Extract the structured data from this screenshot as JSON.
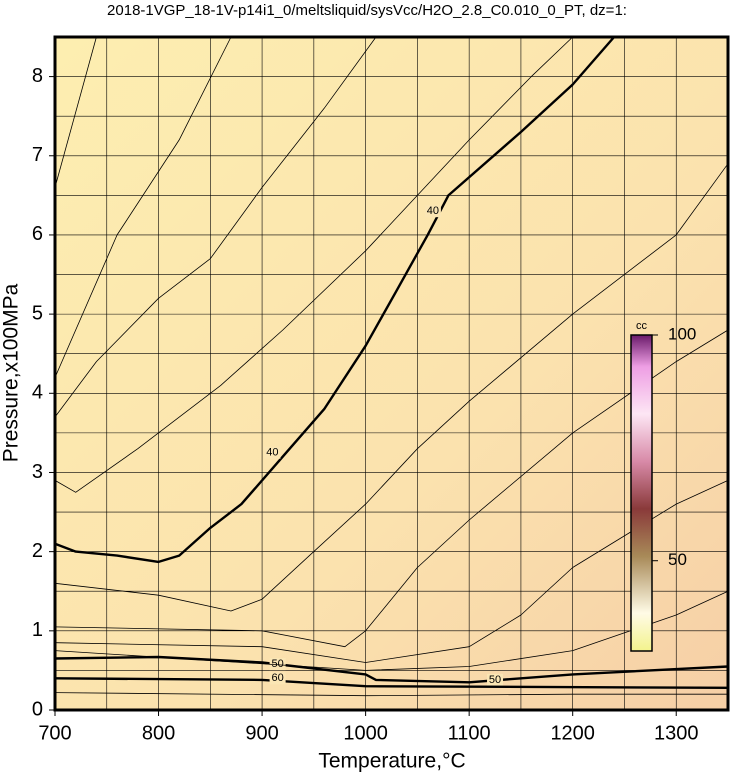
{
  "chart_data": {
    "type": "contour",
    "title": "2018-1VGP_18-1V-p14i1_0/meltsliquid/sysVcc/H2O_2.8_C0.010_0_PT, dz=1:",
    "x_label": "Temperature,°C",
    "y_label": "Pressure,x100MPa",
    "xlim": [
      700,
      1350
    ],
    "ylim": [
      0,
      8.5
    ],
    "xticks": [
      700,
      800,
      900,
      1000,
      1100,
      1200,
      1300
    ],
    "yticks": [
      0,
      1,
      2,
      3,
      4,
      5,
      6,
      7,
      8
    ],
    "xminor_ticks": [
      750,
      850,
      950,
      1050,
      1150,
      1250,
      1350
    ],
    "yminor_ticks": [
      0.5,
      1.5,
      2.5,
      3.5,
      4.5,
      5.5,
      6.5,
      7.5
    ],
    "grid": true,
    "colorbar": {
      "label": "cc",
      "lim": [
        30,
        100
      ],
      "ticks": [
        50,
        100
      ]
    },
    "contours": [
      {
        "level": 40,
        "bold": true,
        "label_x": [
          910,
          1065
        ],
        "label_y": [
          3.25,
          6.3
        ],
        "x": [
          700,
          720,
          760,
          800,
          820,
          850,
          880,
          920,
          960,
          1000,
          1030,
          1060,
          1080,
          1150,
          1200,
          1240
        ],
        "y": [
          2.1,
          2.0,
          1.95,
          1.87,
          1.95,
          2.3,
          2.6,
          3.2,
          3.8,
          4.6,
          5.3,
          6.0,
          6.5,
          7.3,
          7.9,
          8.5
        ]
      },
      {
        "level": 50,
        "bold": true,
        "label_x": [
          915,
          1125
        ],
        "label_y": [
          0.58,
          0.38
        ],
        "x": [
          700,
          800,
          900,
          1000,
          1010,
          1100,
          1200,
          1350
        ],
        "y": [
          0.65,
          0.67,
          0.6,
          0.45,
          0.38,
          0.35,
          0.45,
          0.55
        ]
      },
      {
        "level": 60,
        "bold": true,
        "label_x": [
          915
        ],
        "label_y": [
          0.4
        ],
        "x": [
          700,
          900,
          1000,
          1350
        ],
        "y": [
          0.4,
          0.38,
          0.3,
          0.28
        ]
      },
      {
        "x": [
          700,
          740
        ],
        "y": [
          6.6,
          8.5
        ]
      },
      {
        "x": [
          700,
          760,
          820,
          870
        ],
        "y": [
          4.2,
          6.0,
          7.2,
          8.5
        ]
      },
      {
        "x": [
          700,
          740,
          800,
          850,
          900,
          960,
          1010
        ],
        "y": [
          3.7,
          4.4,
          5.2,
          5.7,
          6.6,
          7.6,
          8.5
        ]
      },
      {
        "x": [
          700,
          720,
          780,
          860,
          920,
          1000,
          1100,
          1160,
          1200
        ],
        "y": [
          2.9,
          2.75,
          3.3,
          4.1,
          4.8,
          5.8,
          7.2,
          8.0,
          8.5
        ]
      },
      {
        "x": [
          700,
          800,
          870,
          900,
          950,
          1000,
          1050,
          1100,
          1200,
          1300,
          1350
        ],
        "y": [
          1.6,
          1.45,
          1.25,
          1.4,
          2.0,
          2.6,
          3.3,
          3.9,
          5.0,
          6.0,
          6.9
        ]
      },
      {
        "x": [
          700,
          900,
          980,
          1000,
          1050,
          1100,
          1200,
          1300,
          1350
        ],
        "y": [
          1.05,
          1.0,
          0.8,
          1.0,
          1.8,
          2.4,
          3.5,
          4.4,
          4.8
        ]
      },
      {
        "x": [
          700,
          900,
          1000,
          1100,
          1150,
          1200,
          1300,
          1350
        ],
        "y": [
          0.85,
          0.8,
          0.6,
          0.8,
          1.2,
          1.8,
          2.6,
          2.9
        ]
      },
      {
        "x": [
          700,
          1000,
          1100,
          1200,
          1300,
          1350
        ],
        "y": [
          0.75,
          0.5,
          0.55,
          0.75,
          1.2,
          1.5
        ]
      },
      {
        "x": [
          700,
          1000,
          1200,
          1350
        ],
        "y": [
          0.22,
          0.18,
          0.2,
          0.2
        ]
      }
    ]
  }
}
